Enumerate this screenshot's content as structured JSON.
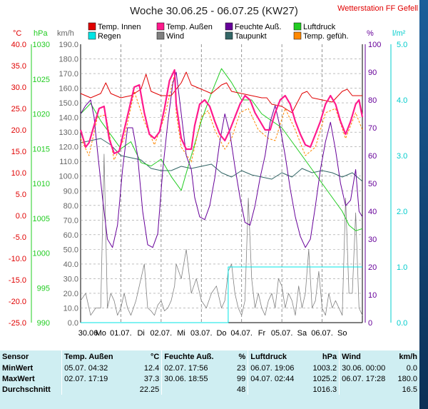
{
  "title": "Woche 30.06.25 - 06.07.25 (KW27)",
  "station": "Wetterstation FF Gefell",
  "legend": [
    {
      "label": "Temp. Innen",
      "color": "#e00000"
    },
    {
      "label": "Temp. Außen",
      "color": "#ff1a8c"
    },
    {
      "label": "Feuchte Auß.",
      "color": "#660099"
    },
    {
      "label": "Luftdruck",
      "color": "#22cc22"
    },
    {
      "label": "Regen",
      "color": "#00e5e5"
    },
    {
      "label": "Wind",
      "color": "#808080"
    },
    {
      "label": "Taupunkt",
      "color": "#336666"
    },
    {
      "label": "Temp. gefüh.",
      "color": "#ff8800"
    }
  ],
  "axes": {
    "temp": {
      "unit": "°C",
      "min": -25,
      "max": 40,
      "ticks": [
        "40.0",
        "35.0",
        "30.0",
        "25.0",
        "20.0",
        "15.0",
        "10.0",
        "5.0",
        "0.0",
        "-5.0",
        "-10.0",
        "-15.0",
        "-20.0",
        "-25.0"
      ],
      "color": "#e00000"
    },
    "pressure": {
      "unit": "hPa",
      "min": 990,
      "max": 1030,
      "ticks": [
        "1030",
        "1025",
        "1020",
        "1015",
        "1010",
        "1005",
        "1000",
        "995",
        "990"
      ],
      "color": "#22cc22"
    },
    "wind": {
      "unit": "km/h",
      "min": 0,
      "max": 190,
      "ticks": [
        "190.0",
        "180.0",
        "170.0",
        "160.0",
        "150.0",
        "140.0",
        "130.0",
        "120.0",
        "110.0",
        "100.0",
        "90.0",
        "80.0",
        "70.0",
        "60.0",
        "50.0",
        "40.0",
        "30.0",
        "20.0",
        "10.0",
        "0.0"
      ],
      "color": "#666666"
    },
    "humidity": {
      "unit": "%",
      "min": 0,
      "max": 100,
      "ticks": [
        "100",
        "90",
        "80",
        "70",
        "60",
        "50",
        "40",
        "30",
        "20",
        "10",
        "0"
      ],
      "color": "#660099"
    },
    "rain": {
      "unit": "l/m²",
      "min": 0,
      "max": 5,
      "ticks": [
        "5.0",
        "4.0",
        "3.0",
        "2.0",
        "1.0",
        "0.0"
      ],
      "color": "#00cccc"
    }
  },
  "x_labels": [
    "30.06.",
    "Mo",
    "01.07.",
    "Di",
    "02.07.",
    "Mi",
    "03.07.",
    "Do",
    "04.07.",
    "Fr",
    "05.07.",
    "Sa",
    "06.07.",
    "So"
  ],
  "chart_data": {
    "type": "line",
    "x_unit": "hours since 30.06. 00:00",
    "x_range": [
      0,
      168
    ],
    "gap_hours": [
      57,
      60
    ],
    "series": [
      {
        "name": "Temp. Innen",
        "axis": "temp",
        "color": "#e00000",
        "x": [
          0,
          6,
          12,
          15,
          18,
          24,
          30,
          36,
          39,
          42,
          48,
          54,
          60,
          63,
          66,
          72,
          78,
          84,
          87,
          90,
          96,
          102,
          108,
          111,
          114,
          120,
          126,
          132,
          135,
          138,
          144,
          150,
          156,
          159,
          162,
          168
        ],
        "y": [
          28.5,
          27.5,
          28.5,
          31,
          28.5,
          27.5,
          28,
          29.5,
          33,
          29,
          28,
          28,
          31,
          33.5,
          30.5,
          29.5,
          28.5,
          30.5,
          31,
          29,
          28.5,
          28,
          27.5,
          27.5,
          26,
          25.5,
          24,
          28.5,
          29,
          27.5,
          27,
          26.5,
          29,
          29.5,
          28,
          28
        ]
      },
      {
        "name": "Temp. Außen",
        "axis": "temp",
        "color": "#ff1a8c",
        "x": [
          0,
          3,
          5,
          8,
          11,
          14,
          17,
          20,
          23,
          26,
          29,
          32,
          35,
          38,
          41,
          44,
          47,
          50,
          53,
          56,
          57,
          60,
          63,
          66,
          68,
          71,
          74,
          77,
          80,
          83,
          86,
          89,
          92,
          95,
          98,
          101,
          104,
          107,
          110,
          113,
          116,
          119,
          122,
          125,
          128,
          131,
          134,
          137,
          140,
          143,
          146,
          149,
          152,
          155,
          158,
          161,
          164,
          166,
          168
        ],
        "y": [
          20,
          16,
          17,
          21,
          25,
          25.5,
          18,
          14.5,
          15,
          20,
          25,
          30,
          30.5,
          24,
          19,
          18,
          19.5,
          25,
          31.5,
          34,
          26,
          18,
          15.5,
          15.5,
          21,
          26,
          27,
          25.5,
          22,
          19,
          17.5,
          20,
          23,
          26,
          28,
          27,
          24,
          22,
          20,
          20,
          24,
          27,
          28,
          26,
          22,
          19,
          16.5,
          16,
          19,
          22,
          26,
          28,
          26,
          22,
          19,
          22,
          26,
          27,
          23
        ]
      },
      {
        "name": "Feuchte Auß.",
        "axis": "humidity",
        "color": "#660099",
        "x": [
          0,
          3,
          6,
          8,
          10,
          13,
          16,
          19,
          22,
          25,
          28,
          31,
          34,
          37,
          40,
          43,
          46,
          49,
          52,
          55,
          57,
          60,
          63,
          66,
          68,
          71,
          74,
          77,
          80,
          83,
          86,
          89,
          92,
          95,
          98,
          101,
          104,
          107,
          110,
          113,
          116,
          119,
          122,
          125,
          128,
          131,
          134,
          137,
          140,
          143,
          146,
          149,
          152,
          155,
          158,
          161,
          164,
          166,
          168
        ],
        "y": [
          75,
          78,
          80,
          74,
          62,
          45,
          30,
          27,
          35,
          55,
          70,
          70,
          60,
          40,
          28,
          27,
          32,
          55,
          72,
          86,
          90,
          75,
          60,
          55,
          45,
          38,
          37,
          42,
          52,
          65,
          75,
          68,
          56,
          45,
          36,
          35,
          42,
          52,
          60,
          72,
          78,
          70,
          60,
          48,
          38,
          31,
          27,
          30,
          42,
          55,
          65,
          72,
          62,
          50,
          42,
          44,
          55,
          40,
          38
        ]
      },
      {
        "name": "Luftdruck",
        "axis": "pressure",
        "color": "#22cc22",
        "x": [
          0,
          6,
          12,
          18,
          24,
          30,
          36,
          42,
          48,
          54,
          60,
          66,
          72,
          78,
          84,
          90,
          96,
          102,
          108,
          114,
          120,
          126,
          132,
          138,
          144,
          150,
          156,
          160,
          164,
          168
        ],
        "y": [
          1020,
          1021.5,
          1019,
          1017,
          1015,
          1016,
          1013,
          1012.5,
          1013.5,
          1011,
          1009,
          1014,
          1019,
          1023,
          1026.5,
          1024.5,
          1022,
          1022,
          1020,
          1019,
          1018,
          1016,
          1014,
          1012,
          1010,
          1008,
          1006,
          1004,
          1003.2,
          1003.5
        ]
      },
      {
        "name": "Taupunkt",
        "axis": "temp",
        "color": "#336666",
        "x": [
          0,
          6,
          12,
          18,
          24,
          30,
          36,
          42,
          48,
          54,
          60,
          66,
          72,
          78,
          84,
          90,
          96,
          102,
          108,
          114,
          120,
          126,
          132,
          138,
          144,
          150,
          156,
          162,
          168
        ],
        "y": [
          17,
          17.5,
          18,
          16.5,
          14,
          13.5,
          13,
          11,
          10.5,
          10.5,
          11.5,
          11,
          11.5,
          12,
          10,
          9,
          10.5,
          9.5,
          9,
          8.5,
          10,
          9,
          11,
          10,
          10.5,
          10,
          9,
          10,
          8
        ]
      },
      {
        "name": "Temp. gefüh.",
        "axis": "temp",
        "color": "#ff8800",
        "x": [
          0,
          5,
          10,
          15,
          20,
          26,
          32,
          38,
          44,
          50,
          56,
          57,
          60,
          66,
          72,
          76,
          80,
          86,
          90,
          95,
          100,
          106,
          112,
          116,
          122,
          128,
          134,
          140,
          146,
          152,
          158,
          164,
          168
        ],
        "y": [
          18,
          14,
          23,
          23.5,
          13,
          18,
          29,
          22,
          16.5,
          23,
          33,
          24,
          16,
          12.5,
          23,
          24.5,
          20,
          15.5,
          18,
          24,
          25,
          20,
          18,
          17.5,
          25,
          20,
          14,
          16,
          24,
          25,
          18,
          24,
          20
        ]
      },
      {
        "name": "Wind",
        "axis": "wind",
        "color": "#808080",
        "x": [
          0,
          3,
          6,
          9,
          12,
          14,
          16,
          18,
          20,
          22,
          24,
          26,
          28,
          30,
          33,
          36,
          38,
          40,
          42,
          44,
          46,
          48,
          50,
          52,
          54,
          56,
          57,
          60,
          63,
          66,
          69,
          72,
          75,
          78,
          81,
          84,
          86,
          88,
          90,
          92,
          94,
          96,
          98,
          100,
          102,
          104,
          106,
          108,
          110,
          112,
          114,
          116,
          118,
          120,
          122,
          124,
          126,
          128,
          130,
          132,
          134,
          136,
          138,
          140,
          142,
          144,
          146,
          148,
          150,
          152,
          154,
          156,
          158,
          160,
          162,
          164,
          166,
          168
        ],
        "y": [
          15,
          20,
          5,
          10,
          10,
          115,
          10,
          20,
          15,
          5,
          10,
          20,
          10,
          5,
          15,
          30,
          40,
          10,
          8,
          5,
          12,
          15,
          8,
          10,
          15,
          25,
          40,
          30,
          50,
          20,
          30,
          15,
          10,
          20,
          25,
          10,
          15,
          35,
          40,
          20,
          10,
          5,
          15,
          85,
          30,
          10,
          20,
          10,
          5,
          15,
          20,
          10,
          30,
          25,
          10,
          20,
          15,
          5,
          25,
          10,
          20,
          50,
          10,
          15,
          35,
          10,
          5,
          20,
          10,
          15,
          10,
          5,
          85,
          20,
          20,
          75,
          10,
          5
        ]
      },
      {
        "name": "Regen",
        "axis": "rain",
        "color": "#00e5e5",
        "x": [
          0,
          84,
          85,
          88,
          88.01,
          99,
          100,
          168
        ],
        "y": [
          0,
          0,
          0,
          0,
          1.0,
          1.0,
          1.0,
          1.0
        ]
      }
    ]
  },
  "stats": {
    "header": {
      "sensor": "Sensor",
      "temp": "Temp. Außen",
      "temp_unit": "°C",
      "hum": "Feuchte Auß.",
      "hum_unit": "%",
      "press": "Luftdruck",
      "press_unit": "hPa",
      "wind": "Wind",
      "wind_unit": "km/h"
    },
    "rows": [
      {
        "label": "MinWert",
        "temp_when": "05.07.  04:32",
        "temp_val": "12.4",
        "hum_when": "02.07.  17:56",
        "hum_val": "23",
        "press_when": "06.07.  19:06",
        "press_val": "1003.2",
        "wind_when": "30.06.  00:00",
        "wind_val": "0.0"
      },
      {
        "label": "MaxWert",
        "temp_when": "02.07.  17:19",
        "temp_val": "37.3",
        "hum_when": "30.06.  18:55",
        "hum_val": "99",
        "press_when": "04.07.  02:44",
        "press_val": "1025.2",
        "wind_when": "06.07.  17:28",
        "wind_val": "180.0"
      },
      {
        "label": "Durchschnitt",
        "temp_when": "",
        "temp_val": "22.25",
        "hum_when": "",
        "hum_val": "48",
        "press_when": "",
        "press_val": "1016.3",
        "wind_when": "",
        "wind_val": "16.5"
      }
    ]
  }
}
